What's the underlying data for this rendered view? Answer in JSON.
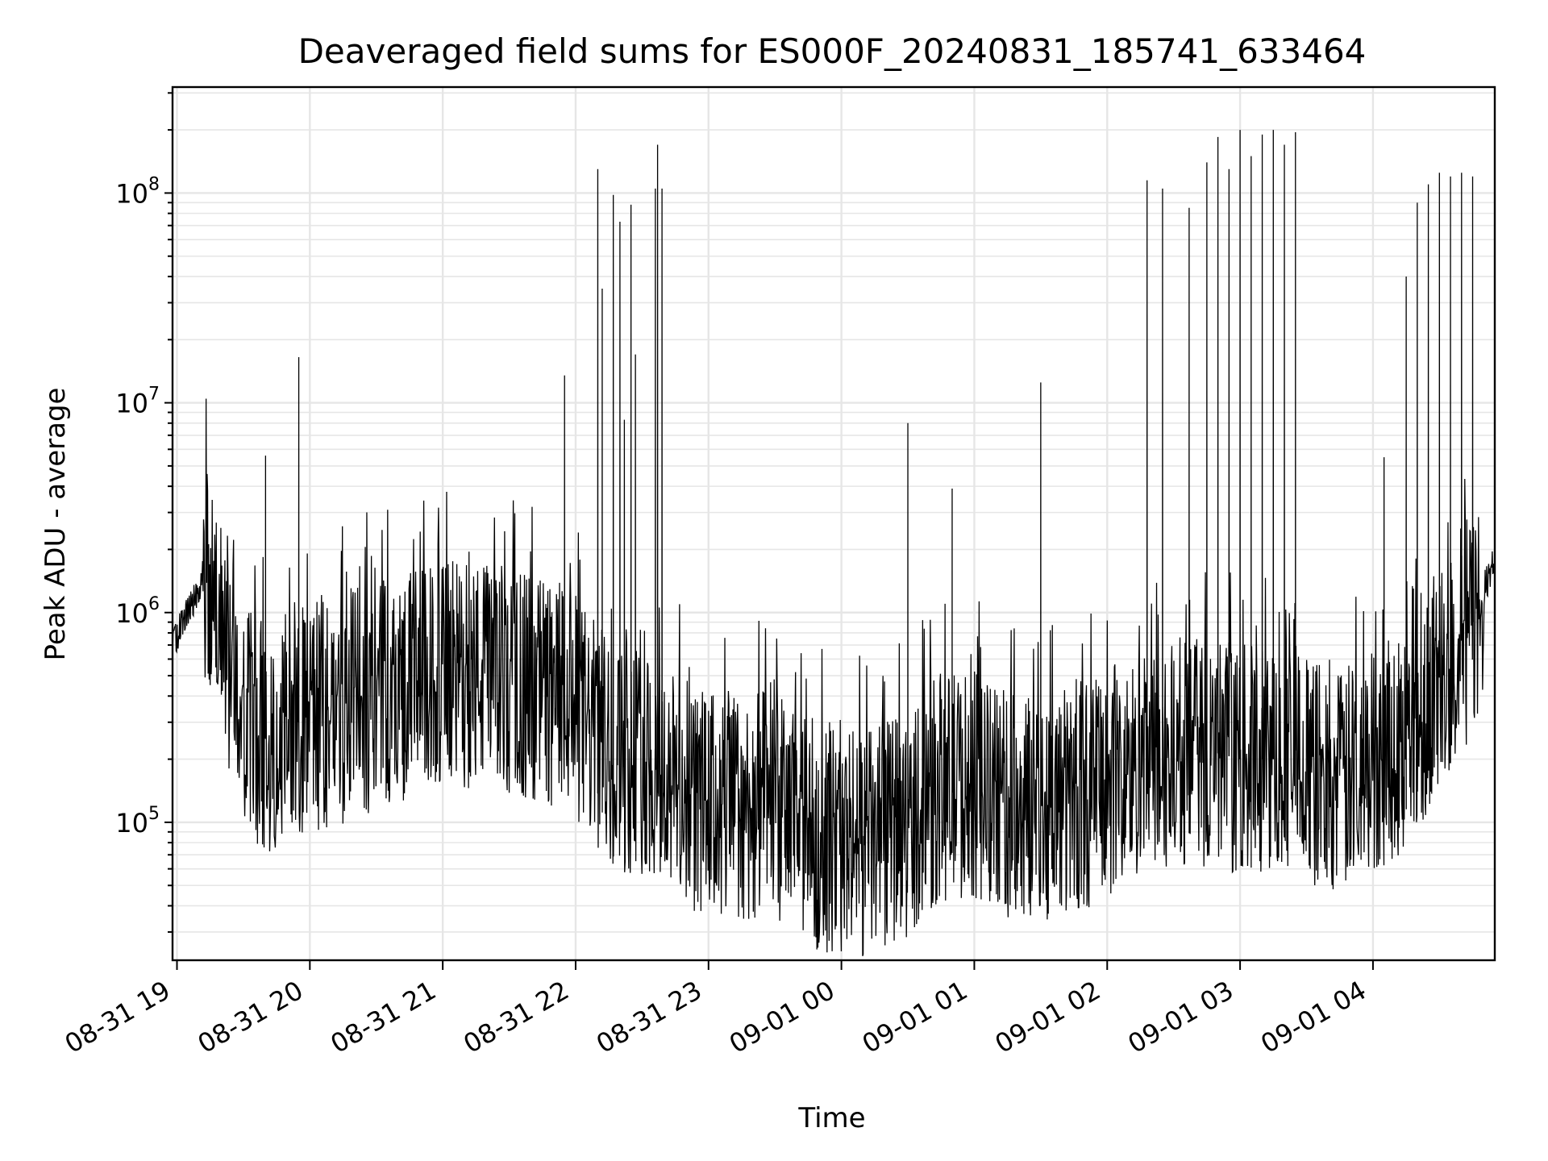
{
  "chart_data": {
    "type": "line",
    "title": "Deaveraged field sums for ES000F_20240831_185741_633464",
    "xlabel": "Time",
    "ylabel": "Peak ADU - average",
    "yscale": "log",
    "xlim": [
      "08-31 18:58",
      "09-01 04:55"
    ],
    "ylim": [
      22000,
      320000000
    ],
    "grid": true,
    "line_color": "#000000",
    "x_ticks": [
      {
        "time": "08-31 19:00",
        "label": "08-31 19"
      },
      {
        "time": "08-31 20:00",
        "label": "08-31 20"
      },
      {
        "time": "08-31 21:00",
        "label": "08-31 21"
      },
      {
        "time": "08-31 22:00",
        "label": "08-31 22"
      },
      {
        "time": "08-31 23:00",
        "label": "08-31 23"
      },
      {
        "time": "09-01 00:00",
        "label": "09-01 00"
      },
      {
        "time": "09-01 01:00",
        "label": "09-01 01"
      },
      {
        "time": "09-01 02:00",
        "label": "09-01 02"
      },
      {
        "time": "09-01 03:00",
        "label": "09-01 03"
      },
      {
        "time": "09-01 04:00",
        "label": "09-01 04"
      }
    ],
    "y_ticks": [
      {
        "value": 100000,
        "base": "10",
        "exp": "5"
      },
      {
        "value": 1000000,
        "base": "10",
        "exp": "6"
      },
      {
        "value": 10000000,
        "base": "10",
        "exp": "7"
      },
      {
        "value": 100000000,
        "base": "10",
        "exp": "8"
      }
    ],
    "series": [
      {
        "name": "",
        "x": [
          "08-31 18:58",
          "08-31 19:05",
          "08-31 19:08",
          "08-31 19:12",
          "08-31 19:15",
          "08-31 19:20",
          "08-31 19:25",
          "08-31 19:30",
          "08-31 19:40",
          "08-31 19:55",
          "08-31 20:15",
          "08-31 20:30",
          "08-31 20:45",
          "08-31 21:00",
          "08-31 21:20",
          "08-31 21:40",
          "08-31 21:55",
          "08-31 22:05",
          "08-31 22:10",
          "08-31 22:20",
          "08-31 22:30",
          "08-31 22:45",
          "08-31 23:00",
          "08-31 23:15",
          "08-31 23:30",
          "08-31 23:45",
          "09-01 00:00",
          "09-01 00:15",
          "09-01 00:30",
          "09-01 00:45",
          "09-01 01:00",
          "09-01 01:15",
          "09-01 01:30",
          "09-01 01:45",
          "09-01 02:00",
          "09-01 02:15",
          "09-01 02:30",
          "09-01 02:45",
          "09-01 03:00",
          "09-01 03:15",
          "09-01 03:25",
          "09-01 03:30",
          "09-01 03:45",
          "09-01 04:00",
          "09-01 04:15",
          "09-01 04:25",
          "09-01 04:35",
          "09-01 04:45",
          "09-01 04:55"
        ],
        "y_base": [
          700000,
          1000000,
          1200000,
          1500000,
          1300000,
          1000000,
          500000,
          300000,
          250000,
          300000,
          350000,
          400000,
          450000,
          500000,
          500000,
          450000,
          400000,
          300000,
          250000,
          200000,
          200000,
          150000,
          120000,
          120000,
          120000,
          90000,
          80000,
          80000,
          100000,
          150000,
          150000,
          120000,
          120000,
          130000,
          150000,
          180000,
          200000,
          220000,
          200000,
          200000,
          220000,
          180000,
          150000,
          200000,
          250000,
          400000,
          600000,
          900000,
          1800000
        ],
        "spike_events": [
          {
            "x": "08-31 19:40",
            "y": 5600000
          },
          {
            "x": "08-31 19:55",
            "y": 16500000
          },
          {
            "x": "08-31 21:55",
            "y": 13500000
          },
          {
            "x": "08-31 22:10",
            "y": 130000000
          },
          {
            "x": "08-31 22:12",
            "y": 35000000
          },
          {
            "x": "08-31 22:17",
            "y": 98000000
          },
          {
            "x": "08-31 22:20",
            "y": 73000000
          },
          {
            "x": "08-31 22:22",
            "y": 8300000
          },
          {
            "x": "08-31 22:25",
            "y": 88000000
          },
          {
            "x": "08-31 22:27",
            "y": 17000000
          },
          {
            "x": "08-31 22:36",
            "y": 105000000
          },
          {
            "x": "08-31 22:37",
            "y": 170000000
          },
          {
            "x": "08-31 22:39",
            "y": 105000000
          },
          {
            "x": "09-01 00:30",
            "y": 8000000
          },
          {
            "x": "09-01 00:50",
            "y": 3900000
          },
          {
            "x": "09-01 01:30",
            "y": 12500000
          },
          {
            "x": "09-01 02:18",
            "y": 115000000
          },
          {
            "x": "09-01 02:25",
            "y": 105000000
          },
          {
            "x": "09-01 02:37",
            "y": 85000000
          },
          {
            "x": "09-01 02:45",
            "y": 140000000
          },
          {
            "x": "09-01 02:50",
            "y": 185000000
          },
          {
            "x": "09-01 02:55",
            "y": 130000000
          },
          {
            "x": "09-01 03:00",
            "y": 200000000
          },
          {
            "x": "09-01 03:05",
            "y": 150000000
          },
          {
            "x": "09-01 03:10",
            "y": 190000000
          },
          {
            "x": "09-01 03:15",
            "y": 200000000
          },
          {
            "x": "09-01 03:20",
            "y": 170000000
          },
          {
            "x": "09-01 03:25",
            "y": 195000000
          },
          {
            "x": "09-01 04:05",
            "y": 5500000
          },
          {
            "x": "09-01 04:15",
            "y": 40000000
          },
          {
            "x": "09-01 04:20",
            "y": 90000000
          },
          {
            "x": "09-01 04:25",
            "y": 110000000
          },
          {
            "x": "09-01 04:30",
            "y": 125000000
          },
          {
            "x": "09-01 04:35",
            "y": 120000000
          },
          {
            "x": "09-01 04:40",
            "y": 125000000
          },
          {
            "x": "09-01 04:45",
            "y": 120000000
          }
        ]
      }
    ]
  }
}
